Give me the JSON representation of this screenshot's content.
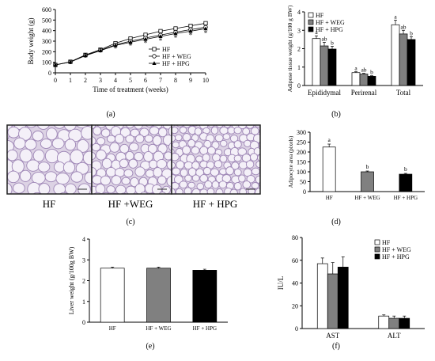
{
  "panels": {
    "a": "(a)",
    "b": "(b)",
    "c": "(c)",
    "d": "(d)",
    "e": "(e)",
    "f": "(f)"
  },
  "micrographs": {
    "labels": [
      "HF",
      "HF +WEG",
      "HF + HPG"
    ],
    "colors": {
      "fill": "#dcd2e4",
      "membrane": "#9e86b6",
      "border": "#222222"
    }
  },
  "chart_data": [
    {
      "id": "a",
      "type": "line",
      "xlabel": "Time of treatment (weeks)",
      "ylabel": "Body weight (g)",
      "xlim": [
        0,
        10
      ],
      "ylim": [
        0,
        600
      ],
      "xticks": [
        0,
        1,
        2,
        3,
        4,
        5,
        6,
        7,
        8,
        9,
        10
      ],
      "yticks": [
        0,
        100,
        200,
        300,
        400,
        500,
        600
      ],
      "x": [
        0,
        1,
        2,
        3,
        4,
        5,
        6,
        7,
        8,
        9,
        10
      ],
      "series": [
        {
          "name": "HF",
          "marker": "square-open",
          "values": [
            75,
            105,
            170,
            220,
            280,
            325,
            360,
            395,
            420,
            445,
            470
          ]
        },
        {
          "name": "HF + WEG",
          "marker": "circle-open",
          "values": [
            75,
            103,
            165,
            213,
            265,
            300,
            330,
            358,
            385,
            410,
            432
          ]
        },
        {
          "name": "HF + HPG",
          "marker": "triangle-filled",
          "values": [
            75,
            102,
            163,
            210,
            260,
            290,
            318,
            345,
            372,
            395,
            418
          ]
        }
      ],
      "annotations": [
        {
          "x": 4,
          "y": 235,
          "text": "*"
        },
        {
          "x": 5,
          "y": 262,
          "text": "*"
        },
        {
          "x": 6,
          "y": 288,
          "text": "*"
        },
        {
          "x": 7,
          "y": 312,
          "text": "*"
        },
        {
          "x": 8,
          "y": 336,
          "text": "*"
        },
        {
          "x": 9,
          "y": 362,
          "text": "*"
        },
        {
          "x": 10,
          "y": 382,
          "text": "*"
        }
      ],
      "legend_position": "bottom-right"
    },
    {
      "id": "b",
      "type": "bar",
      "ylabel": "Adipose tissue weight (g/100 g BW)",
      "ylim": [
        0,
        4
      ],
      "yticks": [
        0,
        1,
        2,
        3,
        4
      ],
      "categories": [
        "Epididymal",
        "Perirenal",
        "Total"
      ],
      "series": [
        {
          "name": "HF",
          "color": "#ffffff",
          "values": [
            2.55,
            0.7,
            3.3
          ],
          "errors": [
            0.15,
            0.05,
            0.25
          ],
          "letters": [
            "a",
            "a",
            "a"
          ]
        },
        {
          "name": "HF + WEG",
          "color": "#808080",
          "values": [
            2.15,
            0.62,
            2.8
          ],
          "errors": [
            0.2,
            0.04,
            0.2
          ],
          "letters": [
            "ab",
            "ab",
            "ab"
          ]
        },
        {
          "name": "HF + HPG",
          "color": "#000000",
          "values": [
            1.98,
            0.5,
            2.5
          ],
          "errors": [
            0.15,
            0.03,
            0.15
          ],
          "letters": [
            "b",
            "b",
            "b"
          ]
        }
      ],
      "legend_position": "top-left"
    },
    {
      "id": "d",
      "type": "bar",
      "ylabel": "Adipocyte area (pixels)",
      "ylim": [
        0,
        300
      ],
      "yticks": [
        0,
        50,
        100,
        150,
        200,
        250,
        300
      ],
      "categories": [
        "HF",
        "HF + WEG",
        "HF + HPG"
      ],
      "values": [
        225,
        100,
        88
      ],
      "errors": [
        15,
        4,
        4
      ],
      "colors": [
        "#ffffff",
        "#808080",
        "#000000"
      ],
      "letters": [
        "a",
        "b",
        "b"
      ]
    },
    {
      "id": "e",
      "type": "bar",
      "ylabel": "Liver weight (g/100g BW)",
      "ylim": [
        0,
        4
      ],
      "yticks": [
        0,
        1,
        2,
        3,
        4
      ],
      "categories": [
        "HF",
        "HF + WEG",
        "HF + HPG"
      ],
      "values": [
        2.6,
        2.6,
        2.5
      ],
      "errors": [
        0.05,
        0.05,
        0.05
      ],
      "colors": [
        "#ffffff",
        "#808080",
        "#000000"
      ]
    },
    {
      "id": "f",
      "type": "bar",
      "ylabel": "IU/L",
      "ylim": [
        0,
        80
      ],
      "yticks": [
        0,
        20,
        40,
        60,
        80
      ],
      "categories": [
        "AST",
        "ALT"
      ],
      "series": [
        {
          "name": "HF",
          "color": "#ffffff",
          "values": [
            57,
            11
          ],
          "errors": [
            5,
            1
          ]
        },
        {
          "name": "HF + WEG",
          "color": "#808080",
          "values": [
            48,
            9
          ],
          "errors": [
            10,
            2
          ]
        },
        {
          "name": "HF + HPG",
          "color": "#000000",
          "values": [
            54,
            9
          ],
          "errors": [
            9,
            2
          ]
        }
      ],
      "legend_position": "top-right"
    }
  ]
}
